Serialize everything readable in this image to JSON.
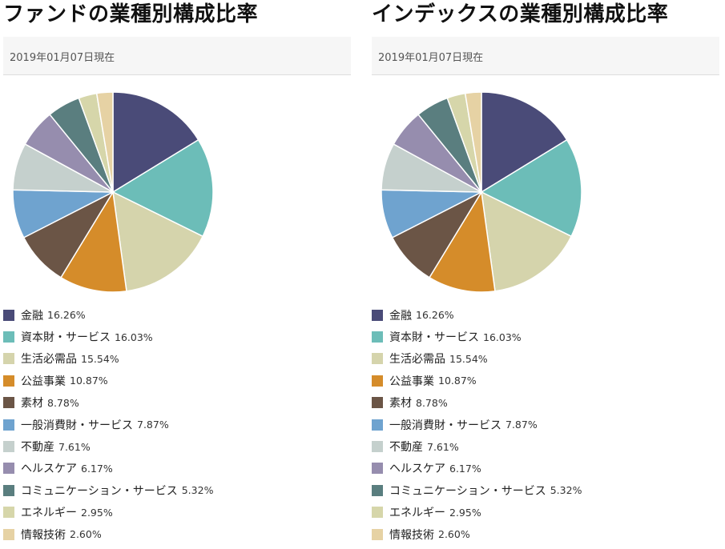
{
  "chart_data": [
    {
      "type": "pie",
      "title": "ファンドの業種別構成比率",
      "subtitle": "2019年01月07日現在",
      "categories": [
        "金融",
        "資本財・サービス",
        "生活必需品",
        "公益事業",
        "素材",
        "一般消費財・サービス",
        "不動産",
        "ヘルスケア",
        "コミュニケーション・サービス",
        "エネルギー",
        "情報技術"
      ],
      "values": [
        16.26,
        16.03,
        15.54,
        10.87,
        8.78,
        7.87,
        7.61,
        6.17,
        5.32,
        2.95,
        2.6
      ],
      "value_labels": [
        "16.26%",
        "16.03%",
        "15.54%",
        "10.87%",
        "8.78%",
        "7.87%",
        "7.61%",
        "6.17%",
        "5.32%",
        "2.95%",
        "2.60%"
      ],
      "colors": [
        "#4a4b78",
        "#6cbdb8",
        "#d5d4ac",
        "#d58c2a",
        "#6b5546",
        "#6fa3cf",
        "#c5d0cd",
        "#968dae",
        "#5a7e7f",
        "#d6d6aa",
        "#e6d2a4"
      ],
      "legend_position": "bottom"
    },
    {
      "type": "pie",
      "title": "インデックスの業種別構成比率",
      "subtitle": "2019年01月07日現在",
      "categories": [
        "金融",
        "資本財・サービス",
        "生活必需品",
        "公益事業",
        "素材",
        "一般消費財・サービス",
        "不動産",
        "ヘルスケア",
        "コミュニケーション・サービス",
        "エネルギー",
        "情報技術"
      ],
      "values": [
        16.26,
        16.03,
        15.54,
        10.87,
        8.78,
        7.87,
        7.61,
        6.17,
        5.32,
        2.95,
        2.6
      ],
      "value_labels": [
        "16.26%",
        "16.03%",
        "15.54%",
        "10.87%",
        "8.78%",
        "7.87%",
        "7.61%",
        "6.17%",
        "5.32%",
        "2.95%",
        "2.60%"
      ],
      "colors": [
        "#4a4b78",
        "#6cbdb8",
        "#d5d4ac",
        "#d58c2a",
        "#6b5546",
        "#6fa3cf",
        "#c5d0cd",
        "#968dae",
        "#5a7e7f",
        "#d6d6aa",
        "#e6d2a4"
      ],
      "legend_position": "bottom"
    }
  ]
}
